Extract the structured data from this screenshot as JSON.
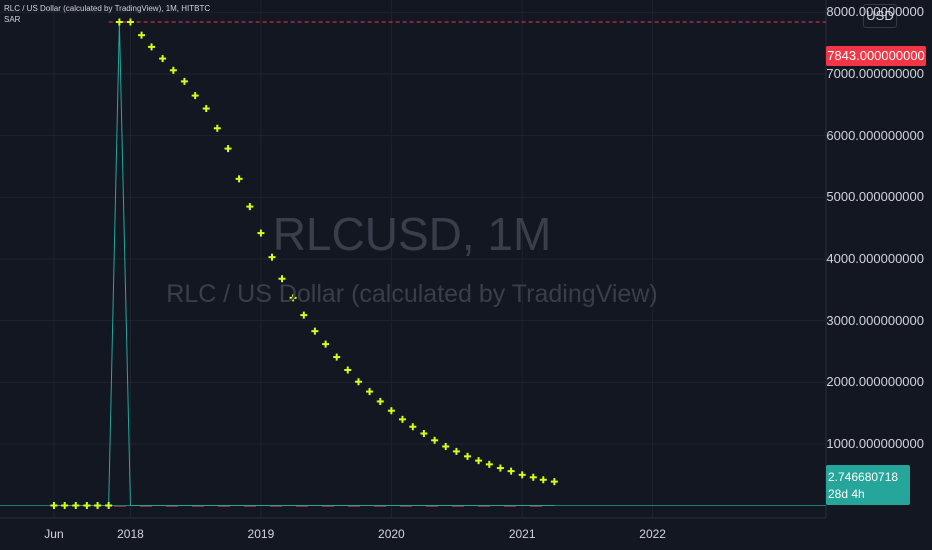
{
  "header": {
    "title": "RLC / US Dollar (calculated by TradingView), 1M, HITBTC",
    "indicator": "SAR"
  },
  "currency_button": "USD",
  "watermark": {
    "symbol": "RLCUSD, 1M",
    "description": "RLC / US Dollar (calculated by TradingView)"
  },
  "price_tags": {
    "high_label": "7843.000000000",
    "last_price": "2.746680718",
    "countdown": "28d 4h"
  },
  "colors": {
    "background": "#131722",
    "sar": "#d4ff1d",
    "price_line": "#26a69a",
    "high_line": "#f23645",
    "axis_text": "#d1d4dc"
  },
  "chart_data": {
    "type": "line",
    "title": "RLC / US Dollar (calculated by TradingView), 1M, HITBTC",
    "xlabel": "",
    "ylabel": "",
    "ylim": [
      -200,
      8200
    ],
    "y_ticks": [
      "1000.000000000",
      "2000.000000000",
      "3000.000000000",
      "4000.000000000",
      "5000.000000000",
      "6000.000000000",
      "7000.000000000",
      "8000.000000000"
    ],
    "y_tick_values": [
      1000,
      2000,
      3000,
      4000,
      5000,
      6000,
      7000,
      8000
    ],
    "x_ticks": [
      "Jun",
      "2018",
      "2019",
      "2020",
      "2021",
      "2022"
    ],
    "x_tick_dates": [
      "2017-06-01",
      "2018-01-01",
      "2019-01-01",
      "2020-01-01",
      "2021-01-01",
      "2022-01-01"
    ],
    "x_range": [
      "2017-01-01",
      "2023-05-01"
    ],
    "series": [
      {
        "name": "SAR",
        "marker": "plus",
        "x": [
          "2017-06-01",
          "2017-07-01",
          "2017-08-01",
          "2017-09-01",
          "2017-10-01",
          "2017-11-01",
          "2017-12-01",
          "2018-01-01",
          "2018-02-01",
          "2018-03-01",
          "2018-04-01",
          "2018-05-01",
          "2018-06-01",
          "2018-07-01",
          "2018-08-01",
          "2018-09-01",
          "2018-10-01",
          "2018-11-01",
          "2018-12-01",
          "2019-01-01",
          "2019-02-01",
          "2019-03-01",
          "2019-04-01",
          "2019-05-01",
          "2019-06-01",
          "2019-07-01",
          "2019-08-01",
          "2019-09-01",
          "2019-10-01",
          "2019-11-01",
          "2019-12-01",
          "2020-01-01",
          "2020-02-01",
          "2020-03-01",
          "2020-04-01",
          "2020-05-01",
          "2020-06-01",
          "2020-07-01",
          "2020-08-01",
          "2020-09-01",
          "2020-10-01",
          "2020-11-01",
          "2020-12-01",
          "2021-01-01",
          "2021-02-01",
          "2021-03-01",
          "2021-04-01"
        ],
        "y": [
          2.7,
          2.7,
          2.7,
          2.7,
          2.7,
          2.7,
          7843,
          7843,
          7630,
          7440,
          7250,
          7060,
          6880,
          6650,
          6440,
          6120,
          5790,
          5300,
          4850,
          4420,
          4030,
          3680,
          3370,
          3090,
          2830,
          2620,
          2410,
          2200,
          2010,
          1850,
          1690,
          1540,
          1400,
          1280,
          1170,
          1060,
          960,
          880,
          800,
          730,
          670,
          610,
          560,
          500,
          460,
          420,
          390
        ]
      },
      {
        "name": "Price",
        "x": [
          "2017-06-01",
          "2017-11-01",
          "2017-12-01",
          "2018-01-01",
          "2021-04-01"
        ],
        "y": [
          2.7,
          2.7,
          7843,
          2.7,
          2.7
        ]
      }
    ],
    "annotations": [
      {
        "type": "hline",
        "y": 7843,
        "label": "7843.000000000",
        "style": "dashed"
      },
      {
        "type": "hline",
        "y": 2.746680718,
        "label": "2.746680718"
      }
    ],
    "grid": true,
    "legend": "none"
  }
}
